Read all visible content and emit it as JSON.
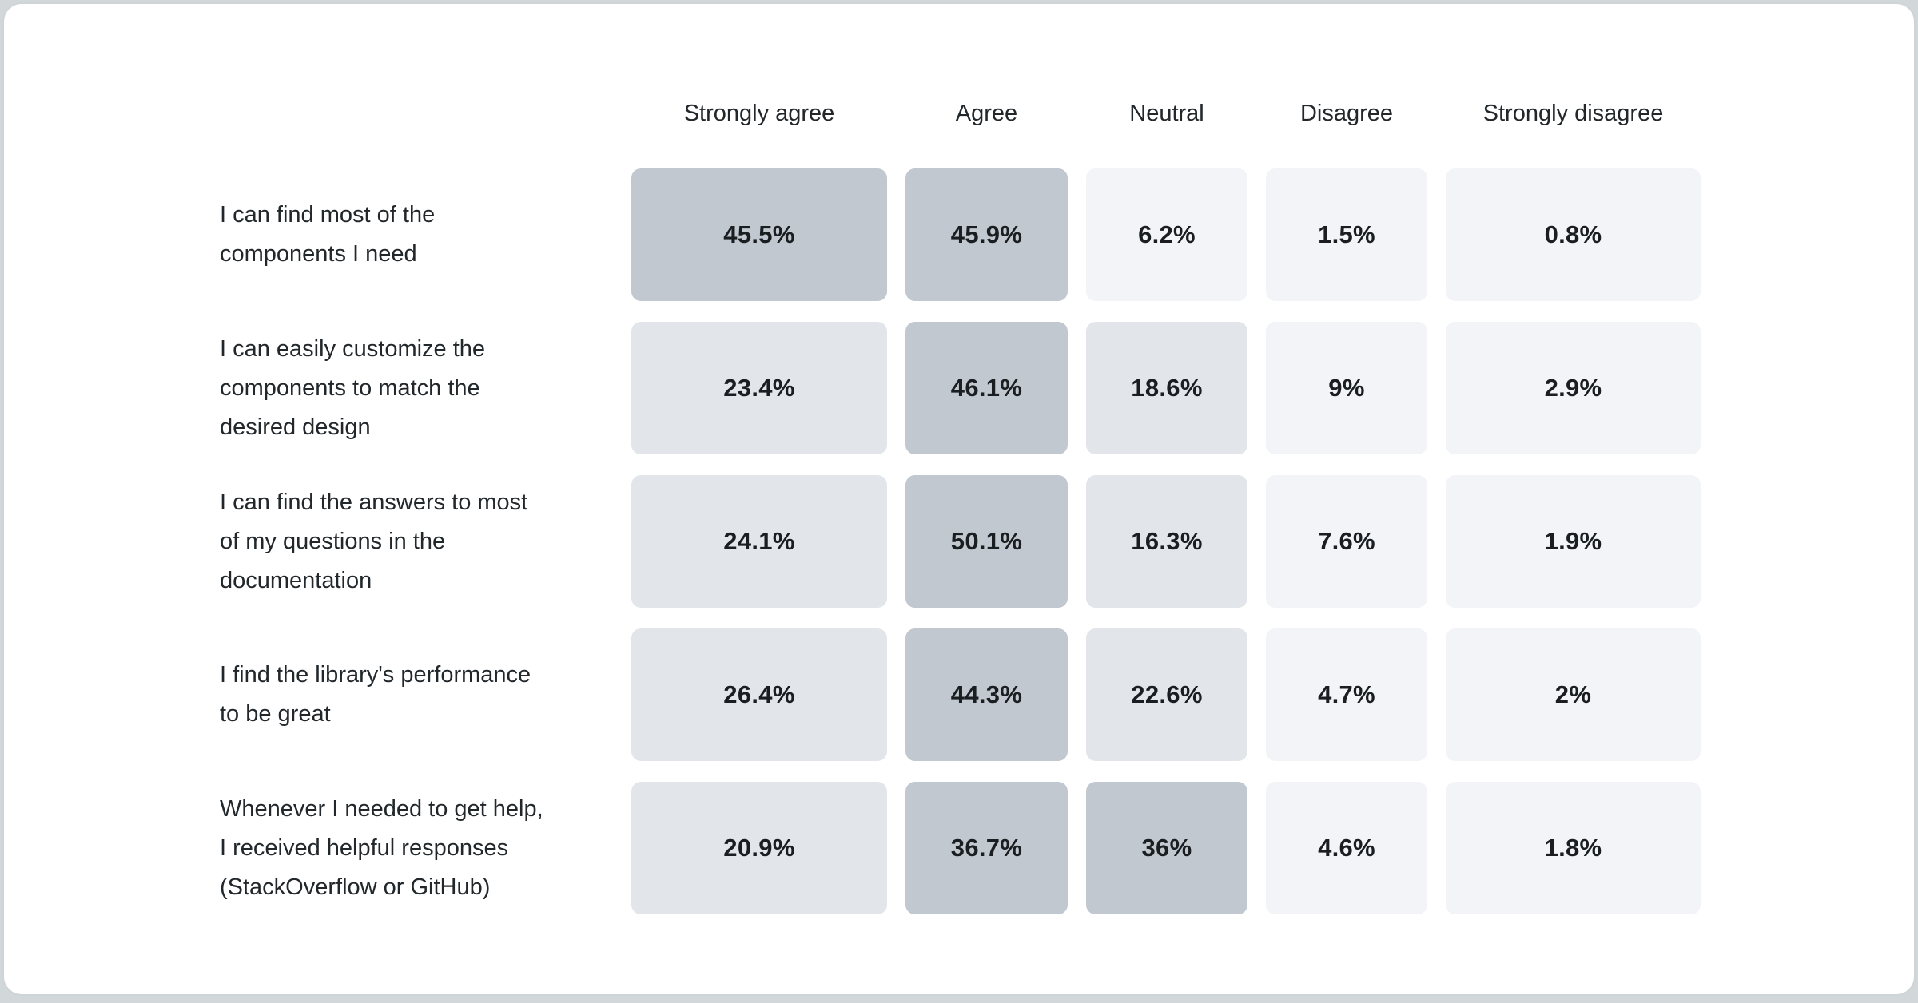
{
  "page": {
    "background_color": "#d2d7da",
    "card_color": "#ffffff",
    "card_border_color": "#cfd4d8"
  },
  "heatmap": {
    "columns": [
      "Strongly agree",
      "Agree",
      "Neutral",
      "Disagree",
      "Strongly disagree"
    ],
    "rows": [
      {
        "label": "I can find most of the\ncomponents I need",
        "values": [
          "45.5%",
          "45.9%",
          "6.2%",
          "1.5%",
          "0.8%"
        ]
      },
      {
        "label": "I can easily customize the\ncomponents to match the\ndesired design",
        "values": [
          "23.4%",
          "46.1%",
          "18.6%",
          "9%",
          "2.9%"
        ]
      },
      {
        "label": "I can find the answers to most\nof my questions in the\ndocumentation",
        "values": [
          "24.1%",
          "50.1%",
          "16.3%",
          "7.6%",
          "1.9%"
        ]
      },
      {
        "label": "I find the library's performance\nto be great",
        "values": [
          "26.4%",
          "44.3%",
          "22.6%",
          "4.7%",
          "2%"
        ]
      },
      {
        "label": "Whenever I needed to get help,\nI received helpful responses\n(StackOverflow or GitHub)",
        "values": [
          "20.9%",
          "36.7%",
          "36%",
          "4.6%",
          "1.8%"
        ]
      }
    ],
    "heat_scale": {
      "high_min": 30,
      "high_color": "#c2c8d0",
      "medium_min": 10,
      "medium_color": "#e2e5ea",
      "low_color": "#f2f4f8"
    },
    "header_text_color": "#21272a",
    "value_text_color": "#1a1e21"
  },
  "chart_data": {
    "type": "heatmap",
    "title": "",
    "columns": [
      "Strongly agree",
      "Agree",
      "Neutral",
      "Disagree",
      "Strongly disagree"
    ],
    "row_labels": [
      "I can find most of the components I need",
      "I can easily customize the components to match the desired design",
      "I can find the answers to most of my questions in the documentation",
      "I find the library's performance to be great",
      "Whenever I needed to get help, I received helpful responses (StackOverflow or GitHub)"
    ],
    "values_percent": [
      [
        45.5,
        45.9,
        6.2,
        1.5,
        0.8
      ],
      [
        23.4,
        46.1,
        18.6,
        9,
        2.9
      ],
      [
        24.1,
        50.1,
        16.3,
        7.6,
        1.9
      ],
      [
        26.4,
        44.3,
        22.6,
        4.7,
        2
      ],
      [
        20.9,
        36.7,
        36,
        4.6,
        1.8
      ]
    ],
    "value_labels": [
      [
        "45.5%",
        "45.9%",
        "6.2%",
        "1.5%",
        "0.8%"
      ],
      [
        "23.4%",
        "46.1%",
        "18.6%",
        "9%",
        "2.9%"
      ],
      [
        "24.1%",
        "50.1%",
        "16.3%",
        "7.6%",
        "1.9%"
      ],
      [
        "26.4%",
        "44.3%",
        "22.6%",
        "4.7%",
        "2%"
      ],
      [
        "20.9%",
        "36.7%",
        "36%",
        "4.6%",
        "1.8%"
      ]
    ],
    "color_mapping": "higher percentage = darker blue-gray cell",
    "legend": "none",
    "grid": "off"
  }
}
